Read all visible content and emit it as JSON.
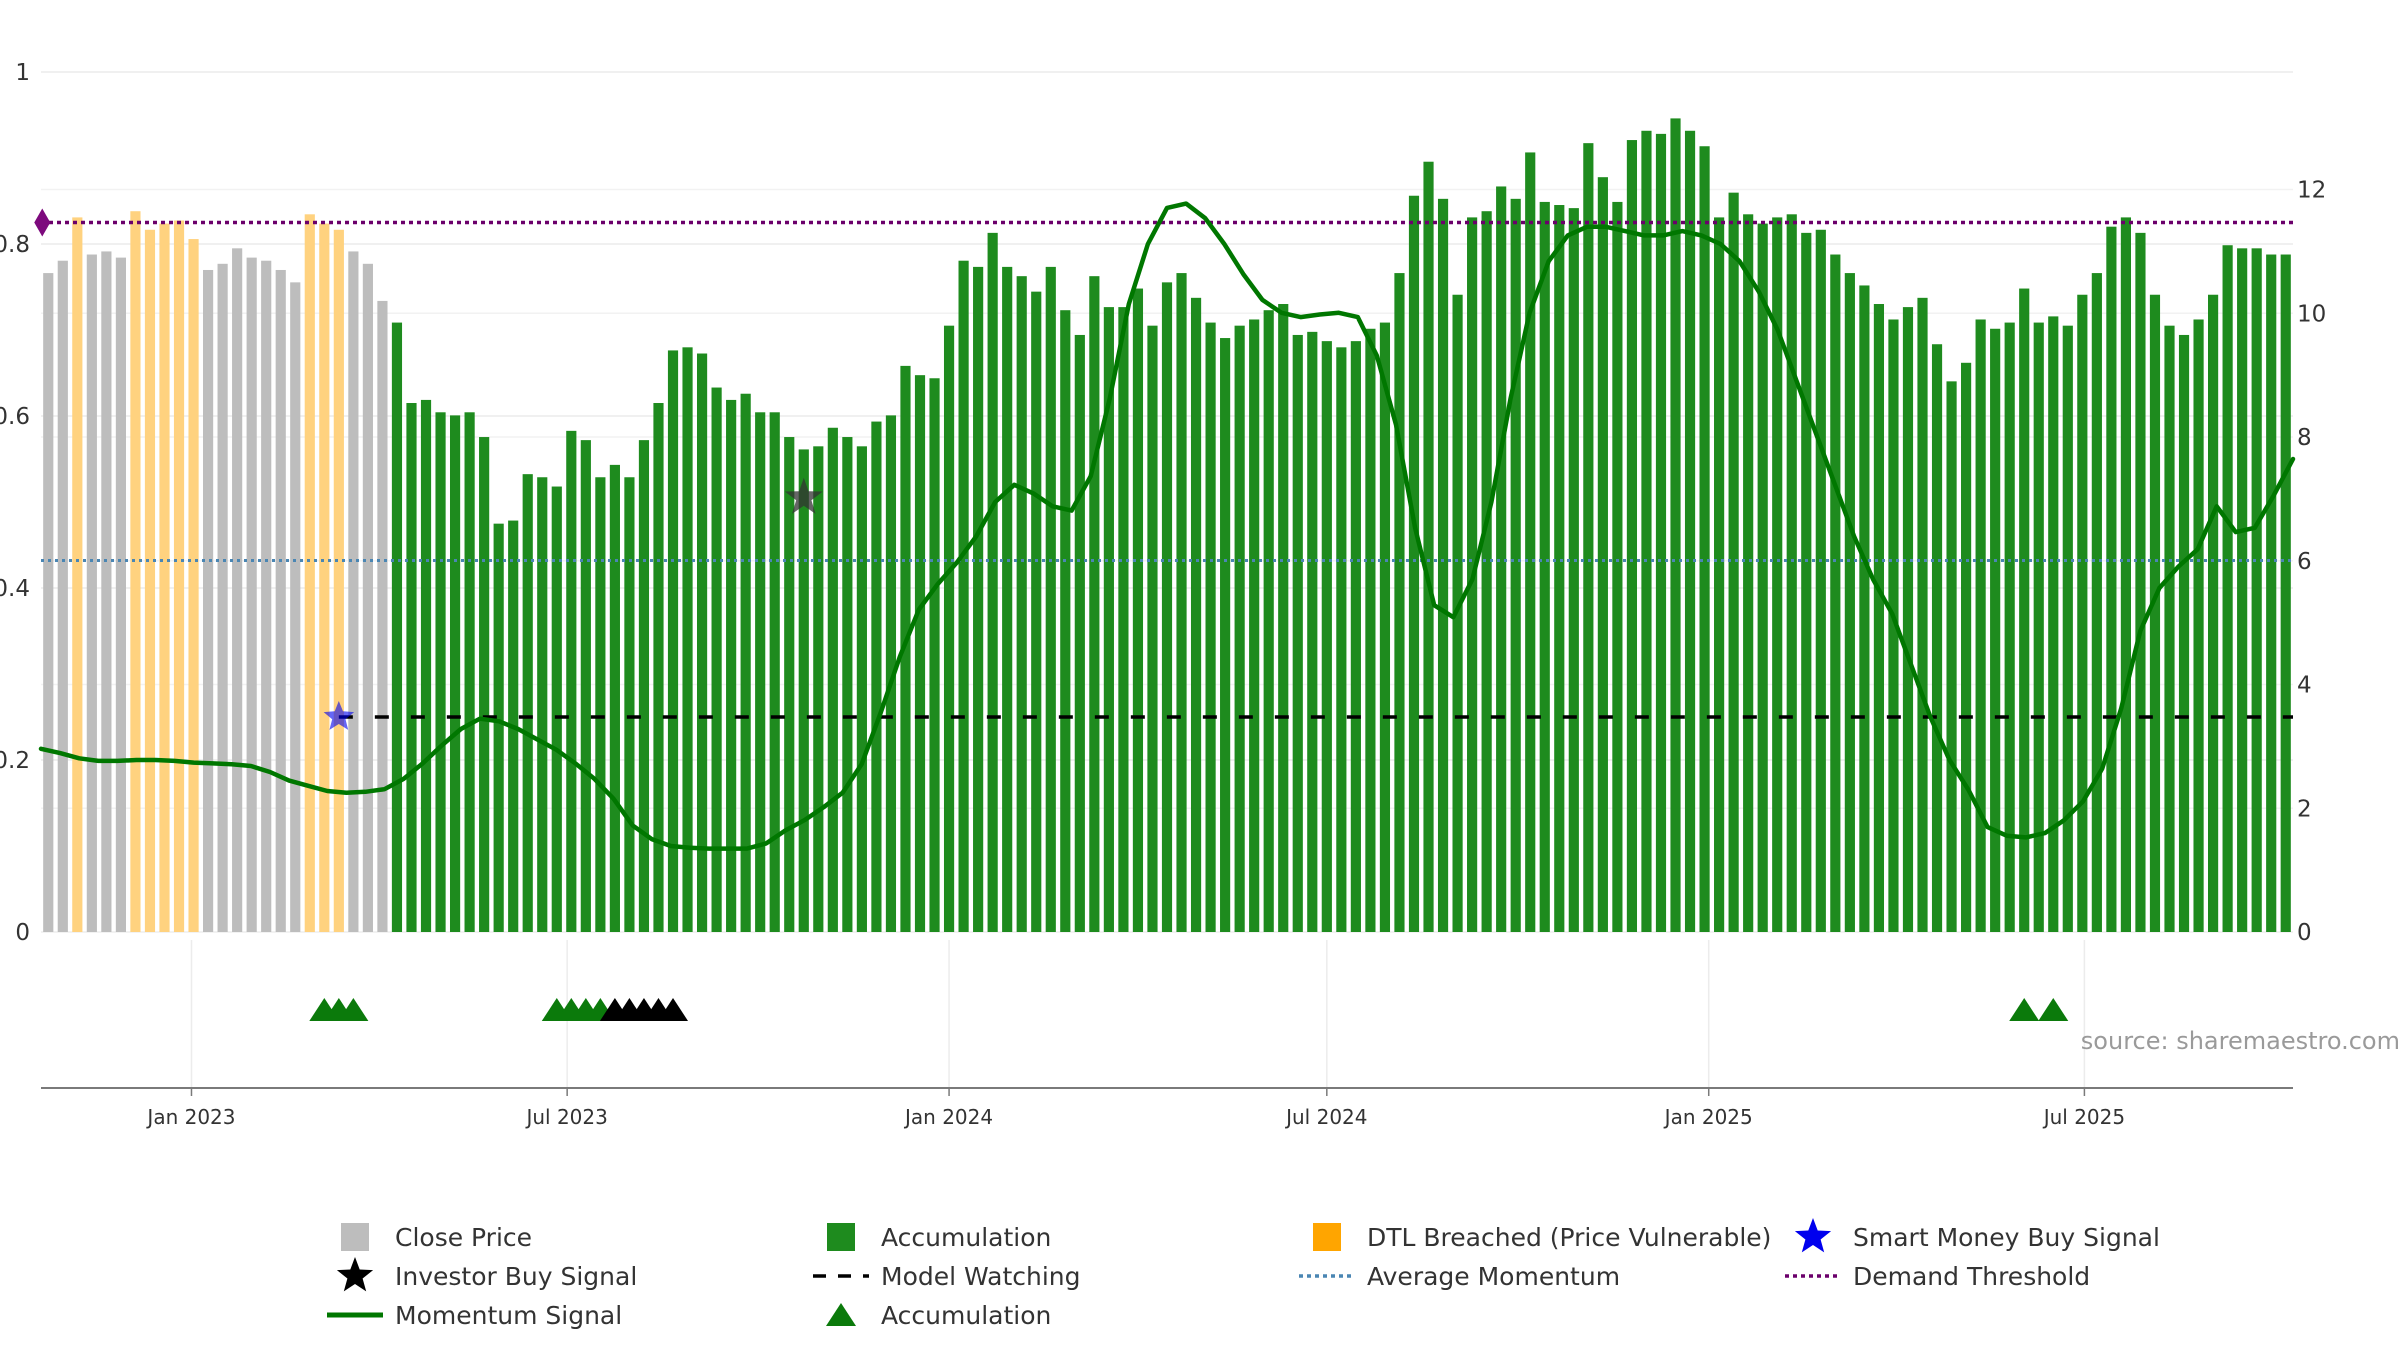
{
  "chart_data": {
    "type": "bar",
    "title": "",
    "source": "source: sharemaestro.com",
    "start_date": "2022-10-24",
    "interval_days": 7,
    "y_left": {
      "ylim": [
        0,
        1
      ],
      "ticks": [
        "0",
        "0.2",
        "0.4",
        "0.6",
        "0.8",
        "1"
      ],
      "values": [
        0,
        0.2,
        0.4,
        0.6,
        0.8,
        1
      ]
    },
    "y_right": {
      "ylim": [
        0,
        13.9
      ],
      "ticks": [
        "0",
        "2",
        "4",
        "6",
        "8",
        "10",
        "12"
      ],
      "values": [
        0,
        2,
        4,
        6,
        8,
        10,
        12
      ]
    },
    "x_ticks": [
      {
        "label": "Jan 2023",
        "date": "2023-01-01"
      },
      {
        "label": "Jul 2023",
        "date": "2023-07-01"
      },
      {
        "label": "Jan 2024",
        "date": "2024-01-01"
      },
      {
        "label": "Jul 2024",
        "date": "2024-07-01"
      },
      {
        "label": "Jan 2025",
        "date": "2025-01-01"
      },
      {
        "label": "Jul 2025",
        "date": "2025-07-01"
      }
    ],
    "series": [
      {
        "name": "Close Price",
        "axis": "right",
        "color": "#bdbdbd",
        "highlight_colors": {
          "A": "#1e8b1e",
          "D": "#ffd27f"
        },
        "values": [
          10.65,
          10.85,
          11.55,
          10.95,
          11.0,
          10.9,
          11.65,
          11.35,
          11.45,
          11.5,
          11.2,
          10.7,
          10.8,
          11.05,
          10.9,
          10.85,
          10.7,
          10.5,
          11.6,
          11.45,
          11.35,
          11.0,
          10.8,
          10.2,
          9.85,
          8.55,
          8.6,
          8.4,
          8.35,
          8.4,
          8.0,
          6.6,
          6.65,
          7.4,
          7.35,
          7.2,
          8.1,
          7.95,
          7.35,
          7.55,
          7.35,
          7.95,
          8.55,
          9.4,
          9.45,
          9.35,
          8.8,
          8.6,
          8.7,
          8.4,
          8.4,
          8.0,
          7.8,
          7.85,
          8.15,
          8.0,
          7.85,
          8.25,
          8.35,
          9.15,
          9.0,
          8.95,
          9.8,
          10.85,
          10.75,
          11.3,
          10.75,
          10.6,
          10.35,
          10.75,
          10.05,
          9.65,
          10.6,
          10.1,
          10.1,
          10.4,
          9.8,
          10.5,
          10.65,
          10.25,
          9.85,
          9.6,
          9.8,
          9.9,
          10.05,
          10.15,
          9.65,
          9.7,
          9.55,
          9.45,
          9.55,
          9.75,
          9.85,
          10.65,
          11.9,
          12.45,
          11.85,
          10.3,
          11.55,
          11.65,
          12.05,
          11.85,
          12.6,
          11.8,
          11.75,
          11.7,
          12.75,
          12.2,
          11.8,
          12.8,
          12.95,
          12.9,
          13.15,
          12.95,
          12.7,
          11.55,
          11.95,
          11.6,
          11.45,
          11.55,
          11.6,
          11.3,
          11.35,
          10.95,
          10.65,
          10.45,
          10.15,
          9.9,
          10.1,
          10.25,
          9.5,
          8.9,
          9.2,
          9.9,
          9.75,
          9.85,
          10.4,
          9.85,
          9.95,
          9.8,
          10.3,
          10.65,
          11.4,
          11.55,
          11.3,
          10.3,
          9.8,
          9.65,
          9.9,
          10.3,
          11.1,
          11.05,
          11.05,
          10.95,
          10.95
        ],
        "flags": "NNDNNNDDDDDNNNNNNNDDDNNNAAAAAAAAAAAAAAAAAAAAAAAAAAAAAAAAAAAAAAAAAAAAAAAAAAAAAAAAAAAAAAAAAAAAAAAAAAAAAAAAAAAAAAAAAAAAAAAAAAAAAAAAAAAAAAAAAAAAAAAAAAAAAAAAAAAA"
      },
      {
        "name": "Momentum Signal",
        "axis": "left",
        "color": "#007700",
        "values": [
          0.213,
          0.208,
          0.202,
          0.199,
          0.199,
          0.2,
          0.2,
          0.199,
          0.197,
          0.196,
          0.195,
          0.193,
          0.186,
          0.176,
          0.17,
          0.164,
          0.162,
          0.163,
          0.166,
          0.178,
          0.196,
          0.217,
          0.236,
          0.248,
          0.245,
          0.236,
          0.224,
          0.212,
          0.196,
          0.178,
          0.155,
          0.124,
          0.108,
          0.1,
          0.098,
          0.097,
          0.097,
          0.097,
          0.103,
          0.118,
          0.13,
          0.145,
          0.162,
          0.195,
          0.255,
          0.32,
          0.375,
          0.405,
          0.43,
          0.46,
          0.5,
          0.52,
          0.51,
          0.495,
          0.49,
          0.53,
          0.62,
          0.73,
          0.8,
          0.842,
          0.847,
          0.83,
          0.8,
          0.765,
          0.735,
          0.72,
          0.715,
          0.718,
          0.72,
          0.715,
          0.67,
          0.59,
          0.47,
          0.38,
          0.366,
          0.41,
          0.5,
          0.62,
          0.72,
          0.78,
          0.81,
          0.82,
          0.82,
          0.815,
          0.81,
          0.81,
          0.815,
          0.81,
          0.8,
          0.78,
          0.745,
          0.7,
          0.64,
          0.58,
          0.52,
          0.46,
          0.41,
          0.37,
          0.31,
          0.25,
          0.2,
          0.165,
          0.122,
          0.112,
          0.11,
          0.115,
          0.13,
          0.152,
          0.19,
          0.26,
          0.35,
          0.4,
          0.425,
          0.445,
          0.495,
          0.465,
          0.47,
          0.508,
          0.55
        ],
        "flags": "NNNNNNNNNNNNNNNNNNNNNNNNNNNNNNNNNNNNNNNNNNNNNNNNNNNNNNNNNNNNNNNNNNNNNNNNNNNNNNNNNNNNNNNNNNNNNNNNNNNNNNNNNNNNNNNNNNNNN"
      },
      {
        "name": "Average Momentum",
        "axis": "left",
        "color": "#4a86b3",
        "value": 0.432
      },
      {
        "name": "Demand Threshold",
        "axis": "left",
        "color": "#6b006b",
        "value": 0.825
      },
      {
        "name": "Model Watching",
        "axis": "left",
        "color": "#000000",
        "value": 0.25,
        "start_date": "2023-03-13"
      }
    ],
    "highlight_ranges": {
      "accumulation": [
        [
          23,
          25
        ],
        [
          40,
          48
        ],
        [
          141,
          141
        ],
        [
          143,
          143
        ]
      ],
      "dtl_breached": [
        [
          2,
          2
        ],
        [
          6,
          10
        ],
        [
          18,
          20
        ],
        [
          94,
          97
        ],
        [
          99,
          135
        ],
        [
          145,
          145
        ]
      ]
    },
    "markers": {
      "smart_money_buy": [
        {
          "date": "2023-03-13",
          "value": 0.25
        }
      ],
      "investor_buy": [
        {
          "date": "2023-10-23",
          "value": 0.505
        }
      ],
      "demand_start": [
        {
          "date": "2022-10-24",
          "value": 0.825
        }
      ],
      "accumulation_triangles": [
        {
          "date": "2023-03-06",
          "color": "#0b7a0b"
        },
        {
          "date": "2023-03-13",
          "color": "#0b7a0b"
        },
        {
          "date": "2023-03-20",
          "color": "#0b7a0b"
        },
        {
          "date": "2023-06-26",
          "color": "#0b7a0b"
        },
        {
          "date": "2023-07-03",
          "color": "#0b7a0b"
        },
        {
          "date": "2023-07-10",
          "color": "#0b7a0b"
        },
        {
          "date": "2023-07-17",
          "color": "#0b7a0b"
        },
        {
          "date": "2023-07-24",
          "color": "#000000"
        },
        {
          "date": "2023-07-31",
          "color": "#000000"
        },
        {
          "date": "2023-08-07",
          "color": "#000000"
        },
        {
          "date": "2023-08-14",
          "color": "#000000"
        },
        {
          "date": "2023-08-21",
          "color": "#000000"
        },
        {
          "date": "2025-06-02",
          "color": "#0b7a0b"
        },
        {
          "date": "2025-06-16",
          "color": "#0b7a0b"
        }
      ]
    },
    "legend": [
      {
        "label": "Close Price",
        "kind": "square",
        "color": "#bdbdbd"
      },
      {
        "label": "Accumulation",
        "kind": "square",
        "color": "#1e8b1e"
      },
      {
        "label": "DTL Breached (Price Vulnerable)",
        "kind": "square",
        "color": "#ffa500"
      },
      {
        "label": "Smart Money Buy Signal",
        "kind": "star",
        "color": "#0000ee"
      },
      {
        "label": "Investor Buy Signal",
        "kind": "star",
        "color": "#000000"
      },
      {
        "label": "Model Watching",
        "kind": "dash",
        "color": "#000000"
      },
      {
        "label": "Average Momentum",
        "kind": "dot",
        "color": "#4a86b3"
      },
      {
        "label": "Demand Threshold",
        "kind": "dot",
        "color": "#6b006b"
      },
      {
        "label": "Momentum Signal",
        "kind": "line",
        "color": "#007700"
      },
      {
        "label": "Accumulation",
        "kind": "triangle",
        "color": "#0b7a0b"
      }
    ]
  }
}
